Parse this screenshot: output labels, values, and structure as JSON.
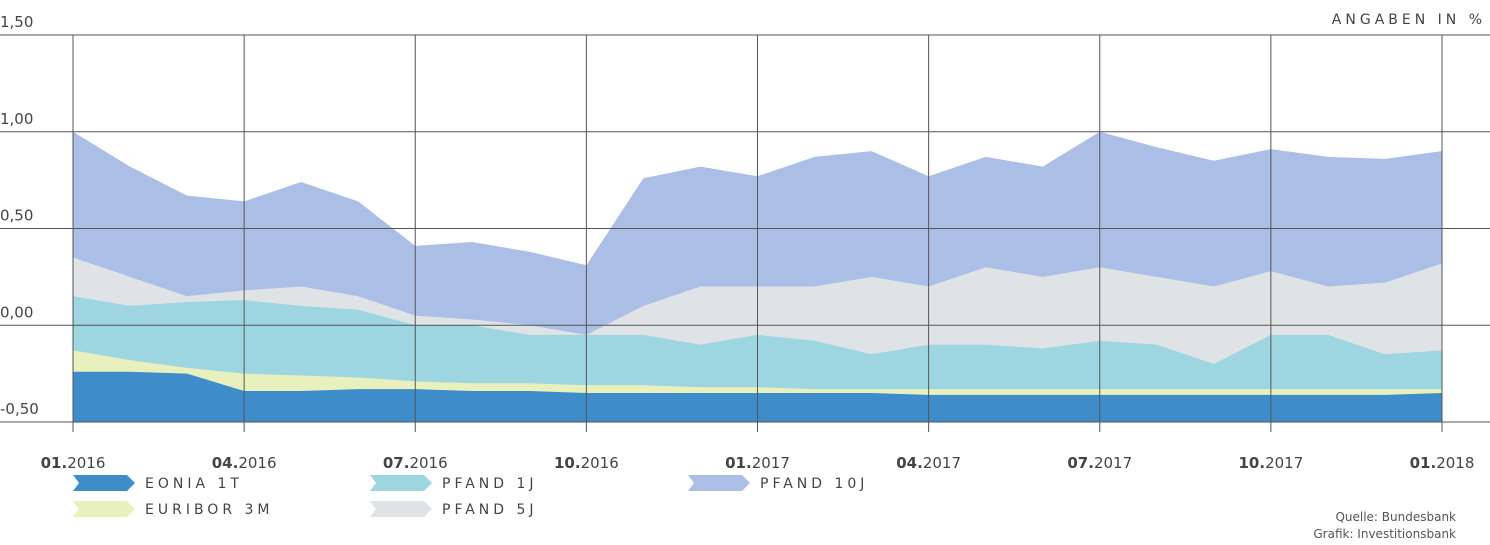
{
  "chart_data": {
    "type": "area",
    "unit_label": "ANGABEN IN %",
    "source": "Quelle: Bundesbank",
    "credit": "Grafik: Investitionsbank",
    "x": [
      "2016-01",
      "2016-02",
      "2016-03",
      "2016-04",
      "2016-05",
      "2016-06",
      "2016-07",
      "2016-08",
      "2016-09",
      "2016-10",
      "2016-11",
      "2016-12",
      "2017-01",
      "2017-02",
      "2017-03",
      "2017-04",
      "2017-05",
      "2017-06",
      "2017-07",
      "2017-08",
      "2017-09",
      "2017-10",
      "2017-11",
      "2017-12",
      "2018-01"
    ],
    "xlim": [
      "2016-01",
      "2018-01"
    ],
    "xticks": [
      {
        "value": "2016-01",
        "label": "01.2016"
      },
      {
        "value": "2016-04",
        "label": "04.2016"
      },
      {
        "value": "2016-07",
        "label": "07.2016"
      },
      {
        "value": "2016-10",
        "label": "10.2016"
      },
      {
        "value": "2017-01",
        "label": "01.2017"
      },
      {
        "value": "2017-04",
        "label": "04.2017"
      },
      {
        "value": "2017-07",
        "label": "07.2017"
      },
      {
        "value": "2017-10",
        "label": "10.2017"
      },
      {
        "value": "2018-01",
        "label": "01.2018"
      }
    ],
    "ylim": [
      -0.5,
      1.5
    ],
    "yticks": [
      {
        "value": 1.5,
        "label": "1,50"
      },
      {
        "value": 1.0,
        "label": "1,00"
      },
      {
        "value": 0.5,
        "label": "0,50"
      },
      {
        "value": 0.0,
        "label": "0,00"
      },
      {
        "value": -0.5,
        "label": "-0,50"
      }
    ],
    "grid": true,
    "series": [
      {
        "name": "EONIA 1T",
        "color": "#3f8ccb",
        "values": [
          -0.24,
          -0.24,
          -0.25,
          -0.34,
          -0.34,
          -0.33,
          -0.33,
          -0.34,
          -0.34,
          -0.35,
          -0.35,
          -0.35,
          -0.35,
          -0.35,
          -0.35,
          -0.36,
          -0.36,
          -0.36,
          -0.36,
          -0.36,
          -0.36,
          -0.36,
          -0.36,
          -0.36,
          -0.35
        ]
      },
      {
        "name": "EURIBOR 3M",
        "color": "#e8f0bd",
        "values": [
          -0.13,
          -0.18,
          -0.22,
          -0.25,
          -0.26,
          -0.27,
          -0.29,
          -0.3,
          -0.3,
          -0.31,
          -0.31,
          -0.32,
          -0.32,
          -0.33,
          -0.33,
          -0.33,
          -0.33,
          -0.33,
          -0.33,
          -0.33,
          -0.33,
          -0.33,
          -0.33,
          -0.33,
          -0.33
        ]
      },
      {
        "name": "PFAND 1J",
        "color": "#9dd6e0",
        "values": [
          0.15,
          0.1,
          0.12,
          0.13,
          0.1,
          0.08,
          0.0,
          0.0,
          -0.05,
          -0.05,
          -0.05,
          -0.1,
          -0.05,
          -0.08,
          -0.15,
          -0.1,
          -0.1,
          -0.12,
          -0.08,
          -0.1,
          -0.2,
          -0.05,
          -0.05,
          -0.15,
          -0.13
        ]
      },
      {
        "name": "PFAND 5J",
        "color": "#e0e3e6",
        "values": [
          0.35,
          0.25,
          0.15,
          0.18,
          0.2,
          0.15,
          0.05,
          0.03,
          0.0,
          -0.05,
          0.1,
          0.2,
          0.2,
          0.2,
          0.25,
          0.2,
          0.3,
          0.25,
          0.3,
          0.25,
          0.2,
          0.28,
          0.2,
          0.22,
          0.32
        ]
      },
      {
        "name": "PFAND 10J",
        "color": "#abbee6",
        "values": [
          1.0,
          0.82,
          0.67,
          0.64,
          0.74,
          0.64,
          0.41,
          0.43,
          0.38,
          0.31,
          0.76,
          0.82,
          0.77,
          0.87,
          0.9,
          0.77,
          0.87,
          0.82,
          1.0,
          0.92,
          0.85,
          0.91,
          0.87,
          0.86,
          0.9
        ]
      }
    ]
  }
}
